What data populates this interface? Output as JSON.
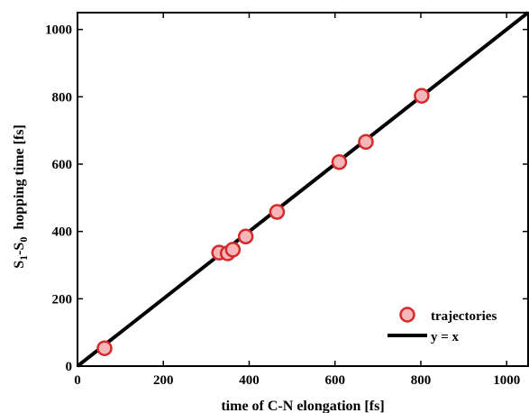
{
  "chart_data": {
    "type": "scatter",
    "xlabel": "time of C-N elongation [fs]",
    "ylabel": {
      "parts": [
        {
          "text": "S",
          "sub": false
        },
        {
          "text": "1",
          "sub": true
        },
        {
          "text": "-S",
          "sub": false
        },
        {
          "text": "0",
          "sub": true
        },
        {
          "text": "  hopping time [fs]",
          "sub": false
        }
      ]
    },
    "xlim": [
      0,
      1050
    ],
    "ylim": [
      0,
      1050
    ],
    "xticks": [
      0,
      200,
      400,
      600,
      800,
      1000
    ],
    "yticks": [
      0,
      200,
      400,
      600,
      800,
      1000
    ],
    "grid": false,
    "legend_position": "bottom-right",
    "series": [
      {
        "name": "trajectories",
        "type": "scatter",
        "marker_fill": "#f4b6b9",
        "marker_edge": "#d42a2a",
        "points": [
          {
            "x": 63,
            "y": 53
          },
          {
            "x": 330,
            "y": 337
          },
          {
            "x": 350,
            "y": 335
          },
          {
            "x": 362,
            "y": 346
          },
          {
            "x": 392,
            "y": 385
          },
          {
            "x": 465,
            "y": 458
          },
          {
            "x": 610,
            "y": 606
          },
          {
            "x": 672,
            "y": 666
          },
          {
            "x": 802,
            "y": 803
          }
        ]
      },
      {
        "name": "y = x",
        "type": "line",
        "color": "#000000",
        "points": [
          {
            "x": 0,
            "y": 0
          },
          {
            "x": 1050,
            "y": 1050
          }
        ]
      }
    ]
  }
}
